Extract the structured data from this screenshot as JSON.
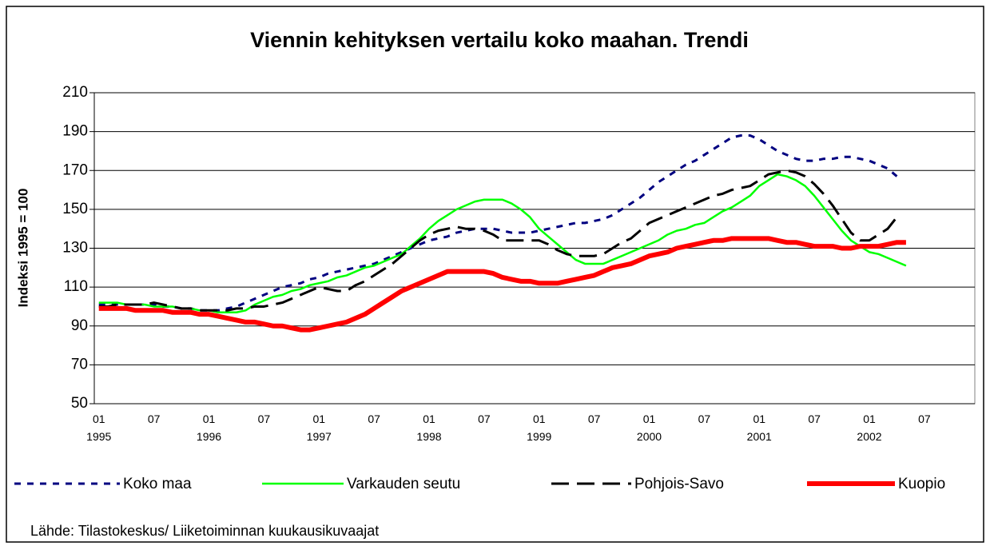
{
  "chart_data": {
    "type": "line",
    "title": "Viennin  kehityksen vertailu koko maahan. Trendi",
    "ylabel": "Indeksi 1995 = 100",
    "source": "Lähde: Tilastokeskus/ Liiketoiminnan kuukausikuvaajat",
    "categories": [
      "01\n1995",
      null,
      null,
      null,
      null,
      null,
      "07",
      null,
      null,
      null,
      null,
      null,
      "01\n1996",
      null,
      null,
      null,
      null,
      null,
      "07",
      null,
      null,
      null,
      null,
      null,
      "01\n1997",
      null,
      null,
      null,
      null,
      null,
      "07",
      null,
      null,
      null,
      null,
      null,
      "01\n1998",
      null,
      null,
      null,
      null,
      null,
      "07",
      null,
      null,
      null,
      null,
      null,
      "01\n1999",
      null,
      null,
      null,
      null,
      null,
      "07",
      null,
      null,
      null,
      null,
      null,
      "01\n2000",
      null,
      null,
      null,
      null,
      null,
      "07",
      null,
      null,
      null,
      null,
      null,
      "01\n2001",
      null,
      null,
      null,
      null,
      null,
      "07",
      null,
      null,
      null,
      null,
      null,
      "01\n2002",
      null,
      null,
      null,
      null,
      null,
      "07",
      null,
      null,
      null,
      null,
      null
    ],
    "ylim": [
      50,
      210
    ],
    "yticks": [
      50,
      70,
      90,
      110,
      130,
      150,
      170,
      190,
      210
    ],
    "grid": true,
    "series": [
      {
        "name": "Koko maa",
        "color": "#000080",
        "dash": "8 8",
        "width": 3,
        "values": [
          101,
          101,
          101,
          101,
          101,
          101,
          101,
          100,
          100,
          99,
          99,
          98,
          98,
          98,
          99,
          100,
          102,
          104,
          106,
          108,
          110,
          111,
          112,
          114,
          115,
          117,
          118,
          119,
          120,
          121,
          122,
          124,
          126,
          128,
          130,
          132,
          134,
          135,
          136,
          138,
          139,
          140,
          140,
          140,
          139,
          138,
          138,
          138,
          139,
          140,
          141,
          142,
          143,
          143,
          144,
          145,
          147,
          150,
          153,
          156,
          160,
          164,
          167,
          170,
          173,
          175,
          178,
          181,
          184,
          187,
          188,
          188,
          186,
          183,
          180,
          178,
          176,
          175,
          175,
          176,
          176,
          177,
          177,
          176,
          175,
          173,
          171,
          167,
          null,
          null,
          null,
          null,
          null,
          null,
          null,
          null
        ]
      },
      {
        "name": "Varkauden seutu",
        "color": "#00ff00",
        "dash": "none",
        "width": 2.5,
        "values": [
          102,
          102,
          102,
          101,
          101,
          101,
          100,
          100,
          100,
          99,
          99,
          98,
          98,
          97,
          97,
          97,
          98,
          101,
          103,
          105,
          106,
          108,
          109,
          111,
          112,
          113,
          115,
          116,
          118,
          120,
          121,
          123,
          125,
          127,
          131,
          135,
          140,
          144,
          147,
          150,
          152,
          154,
          155,
          155,
          155,
          153,
          150,
          146,
          140,
          136,
          132,
          128,
          124,
          122,
          122,
          122,
          124,
          126,
          128,
          130,
          132,
          134,
          137,
          139,
          140,
          142,
          143,
          146,
          149,
          151,
          154,
          157,
          162,
          165,
          168,
          167,
          165,
          162,
          157,
          151,
          145,
          139,
          134,
          131,
          128,
          127,
          125,
          123,
          121,
          null,
          null,
          null,
          null,
          null,
          null,
          null
        ]
      },
      {
        "name": "Pohjois-Savo",
        "color": "#000000",
        "dash": "22 10",
        "width": 3,
        "values": [
          100,
          100,
          101,
          101,
          101,
          101,
          102,
          101,
          100,
          99,
          99,
          98,
          98,
          98,
          98,
          99,
          99,
          100,
          100,
          101,
          102,
          104,
          106,
          108,
          110,
          109,
          108,
          108,
          111,
          113,
          116,
          119,
          122,
          126,
          130,
          134,
          137,
          139,
          140,
          141,
          140,
          140,
          139,
          137,
          134,
          134,
          134,
          134,
          134,
          132,
          129,
          127,
          126,
          126,
          126,
          127,
          130,
          133,
          135,
          139,
          143,
          145,
          147,
          149,
          151,
          153,
          155,
          157,
          158,
          160,
          161,
          162,
          165,
          168,
          169,
          170,
          169,
          167,
          163,
          158,
          152,
          145,
          138,
          134,
          134,
          137,
          140,
          146,
          null,
          null,
          null,
          null,
          null,
          null,
          null,
          null
        ]
      },
      {
        "name": "Kuopio",
        "color": "#ff0000",
        "dash": "none",
        "width": 6,
        "values": [
          99,
          99,
          99,
          99,
          98,
          98,
          98,
          98,
          97,
          97,
          97,
          96,
          96,
          95,
          94,
          93,
          92,
          92,
          91,
          90,
          90,
          89,
          88,
          88,
          89,
          90,
          91,
          92,
          94,
          96,
          99,
          102,
          105,
          108,
          110,
          112,
          114,
          116,
          118,
          118,
          118,
          118,
          118,
          117,
          115,
          114,
          113,
          113,
          112,
          112,
          112,
          113,
          114,
          115,
          116,
          118,
          120,
          121,
          122,
          124,
          126,
          127,
          128,
          130,
          131,
          132,
          133,
          134,
          134,
          135,
          135,
          135,
          135,
          135,
          134,
          133,
          133,
          132,
          131,
          131,
          131,
          130,
          130,
          131,
          131,
          131,
          132,
          133,
          133,
          null,
          null,
          null,
          null,
          null,
          null,
          null
        ]
      }
    ]
  }
}
